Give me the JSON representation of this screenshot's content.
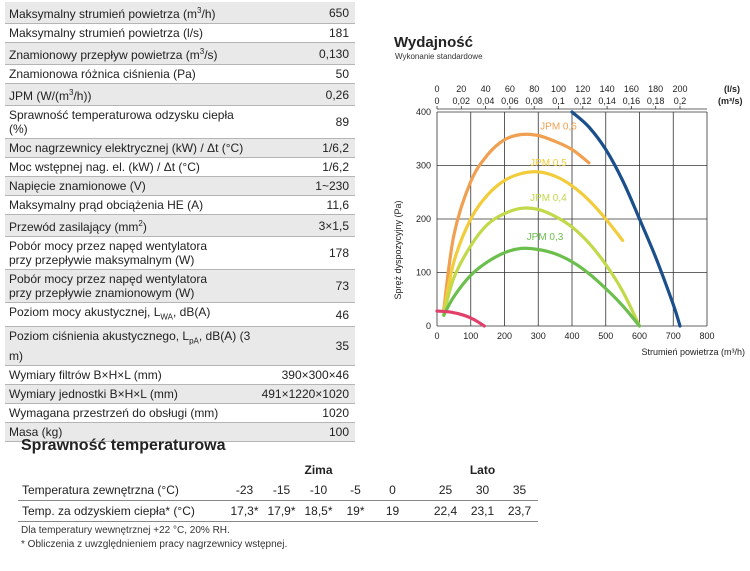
{
  "specs": [
    {
      "label": "Maksymalny strumień powietrza (m³/h)",
      "value": "650"
    },
    {
      "label": "Maksymalny strumień powietrza (l/s)",
      "value": "181"
    },
    {
      "label": "Znamionowy przepływ powietrza (m³/s)",
      "value": "0,130"
    },
    {
      "label": "Znamionowa różnica ciśnienia (Pa)",
      "value": "50"
    },
    {
      "label": "JPM (W/(m³/h))",
      "value": "0,26"
    },
    {
      "label": "Sprawność temperaturowa odzysku ciepła (%)",
      "value": "89"
    },
    {
      "label": "Moc nagrzewnicy elektrycznej (kW) / Δt (°C)",
      "value": "1/6,2"
    },
    {
      "label": "Moc wstępnej nag. el. (kW) / Δt (°C)",
      "value": "1/6,2"
    },
    {
      "label": "Napięcie znamionowe (V)",
      "value": "1~230"
    },
    {
      "label": "Maksymalny prąd obciążenia HE (A)",
      "value": "11,6"
    },
    {
      "label": "Przewód zasilający (mm²)",
      "value": "3×1,5"
    },
    {
      "label": "Pobór mocy przez napęd wentylatora przy przepływie maksymalnym (W)",
      "value": "178"
    },
    {
      "label": "Pobór mocy przez napęd wentylatora przy przepływie znamionowym (W)",
      "value": "73"
    },
    {
      "label": "Poziom mocy akustycznej, L_WA, dB(A)",
      "value": "46"
    },
    {
      "label": "Poziom ciśnienia akustycznego, L_pA, dB(A) (3 m)",
      "value": "35"
    },
    {
      "label": "Wymiary filtrów B×H×L (mm)",
      "value": "390×300×46"
    },
    {
      "label": "Wymiary jednostki B×H×L (mm)",
      "value": "491×1220×1020"
    },
    {
      "label": "Wymagana przestrzeń do obsługi (mm)",
      "value": "1020"
    },
    {
      "label": "Masa (kg)",
      "value": "100"
    }
  ],
  "chart_data": {
    "type": "line",
    "title": "Wydajność",
    "subtitle": "Wykonanie standardowe",
    "xlabel": "Strumień powietrza (m³/h)",
    "ylabel": "Spręż dyspozycyjny (Pa)",
    "xlim": [
      0,
      800
    ],
    "ylim": [
      0,
      400
    ],
    "x_ticks": [
      "0",
      "100",
      "200",
      "300",
      "400",
      "500",
      "600",
      "700",
      "800"
    ],
    "y_ticks": [
      "0",
      "100",
      "200",
      "300",
      "400"
    ],
    "top_axis_ls_ticks": [
      "0",
      "20",
      "40",
      "60",
      "80",
      "100",
      "120",
      "140",
      "160",
      "180",
      "200"
    ],
    "top_axis_m3s_ticks": [
      "0",
      "0,02",
      "0,04",
      "0,06",
      "0,08",
      "0,1",
      "0,12",
      "0,14",
      "0,16",
      "0,18",
      "0,2"
    ],
    "top_axis_ls_unit": "(l/s)",
    "top_axis_m3s_unit": "(m³/s)",
    "grid": true,
    "series": [
      {
        "name": "JPM 0,6",
        "color": "#f0a050",
        "x": [
          20,
          50,
          100,
          150,
          200,
          250,
          300,
          350,
          400,
          450
        ],
        "y": [
          30,
          170,
          270,
          320,
          348,
          358,
          356,
          345,
          330,
          305
        ]
      },
      {
        "name": "JPM 0,5",
        "color": "#f2cc3a",
        "x": [
          20,
          50,
          100,
          150,
          200,
          250,
          300,
          350,
          400,
          450,
          500,
          550
        ],
        "y": [
          25,
          120,
          200,
          245,
          272,
          285,
          288,
          280,
          262,
          235,
          200,
          160
        ]
      },
      {
        "name": "JPM 0,4",
        "color": "#c2d94a",
        "x": [
          20,
          50,
          100,
          150,
          200,
          250,
          300,
          350,
          400,
          450,
          500,
          550,
          600
        ],
        "y": [
          22,
          90,
          150,
          190,
          210,
          220,
          218,
          205,
          185,
          155,
          115,
          65,
          0
        ]
      },
      {
        "name": "JPM 0,3",
        "color": "#6cbf4c",
        "x": [
          20,
          50,
          100,
          150,
          200,
          250,
          300,
          350,
          400,
          450,
          500,
          550,
          600
        ],
        "y": [
          20,
          55,
          95,
          120,
          137,
          145,
          143,
          135,
          120,
          98,
          70,
          38,
          0
        ]
      },
      {
        "name": "",
        "color": "#1a4f8c",
        "x": [
          400,
          450,
          500,
          550,
          600,
          650,
          700,
          720
        ],
        "y": [
          400,
          372,
          330,
          272,
          200,
          125,
          40,
          0
        ]
      },
      {
        "name": "",
        "color": "#e0406a",
        "x": [
          0,
          40,
          80,
          110,
          140
        ],
        "y": [
          28,
          26,
          20,
          12,
          0
        ]
      }
    ]
  },
  "efficiency": {
    "title": "Sprawność temperaturowa",
    "season_winter": "Zima",
    "season_summer": "Lato",
    "temp_label": "Temperatura zewnętrzna (°C)",
    "temp_values": [
      "-23",
      "-15",
      "-10",
      "-5",
      "0",
      "25",
      "30",
      "35"
    ],
    "eff_label": "Temp. za odzyskiem ciepła* (°C)",
    "eff_values": [
      "17,3*",
      "17,9*",
      "18,5*",
      "19*",
      "19",
      "22,4",
      "23,1",
      "23,7"
    ]
  },
  "notes": {
    "line1": "Dla temperatury wewnętrznej +22 °C, 20% RH.",
    "line2": "* Obliczenia z uwzględnieniem pracy nagrzewnicy wstępnej."
  }
}
